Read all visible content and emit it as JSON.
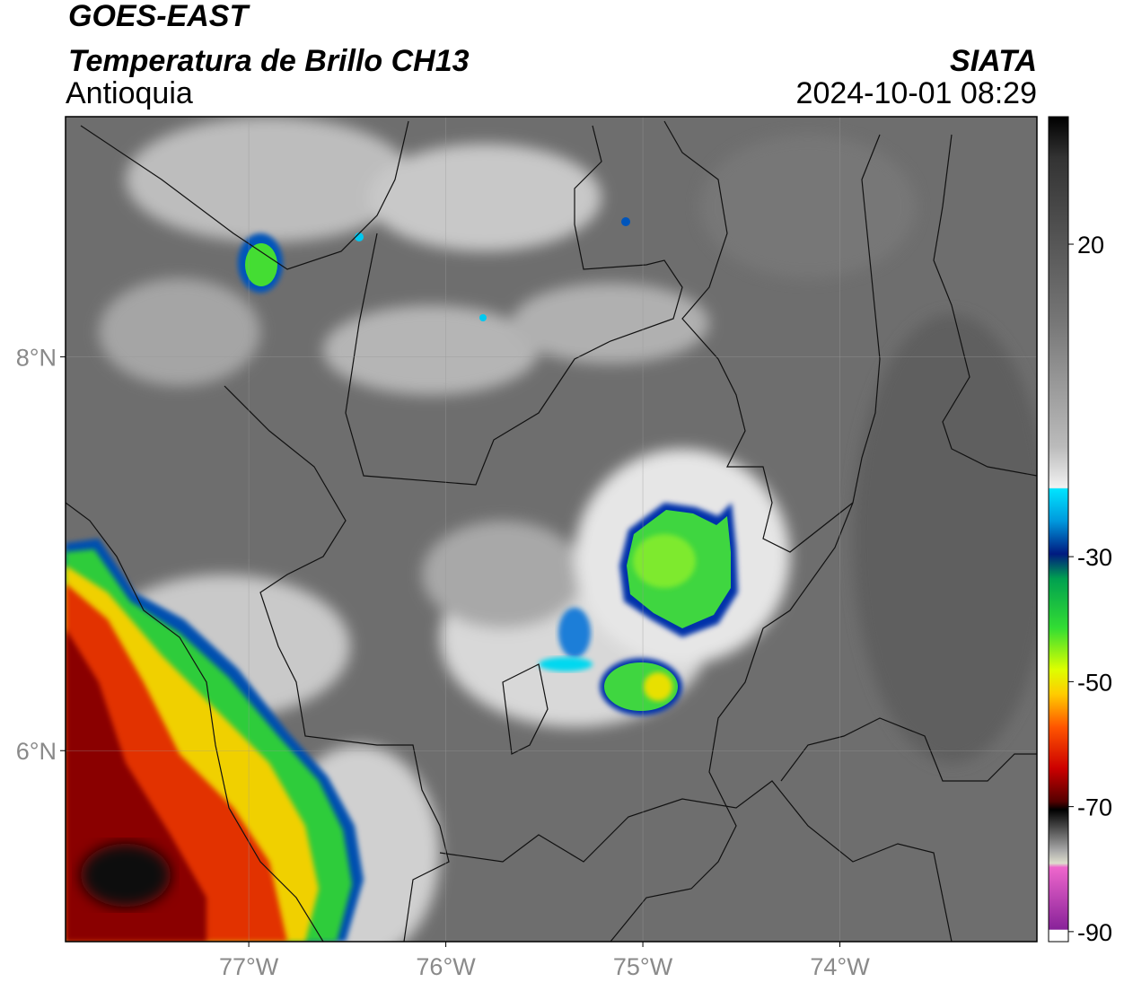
{
  "header": {
    "title": "GOES-EAST",
    "subtitle": "Temperatura de Brillo CH13",
    "region": "Antioquia",
    "source": "SIATA",
    "datetime": "2024-10-01 08:29"
  },
  "map": {
    "xlim": [
      -77.93,
      -73.0
    ],
    "ylim": [
      5.03,
      9.22
    ],
    "xticks": [
      {
        "value": -77,
        "label": "77°W"
      },
      {
        "value": -76,
        "label": "76°W"
      },
      {
        "value": -75,
        "label": "75°W"
      },
      {
        "value": -74,
        "label": "74°W"
      }
    ],
    "yticks": [
      {
        "value": 6,
        "label": "6°N"
      },
      {
        "value": 8,
        "label": "8°N"
      }
    ]
  },
  "colorbar": {
    "lim": [
      -91.6,
      40.4
    ],
    "ticks": [
      20,
      -30,
      -50,
      -70,
      -90
    ]
  }
}
